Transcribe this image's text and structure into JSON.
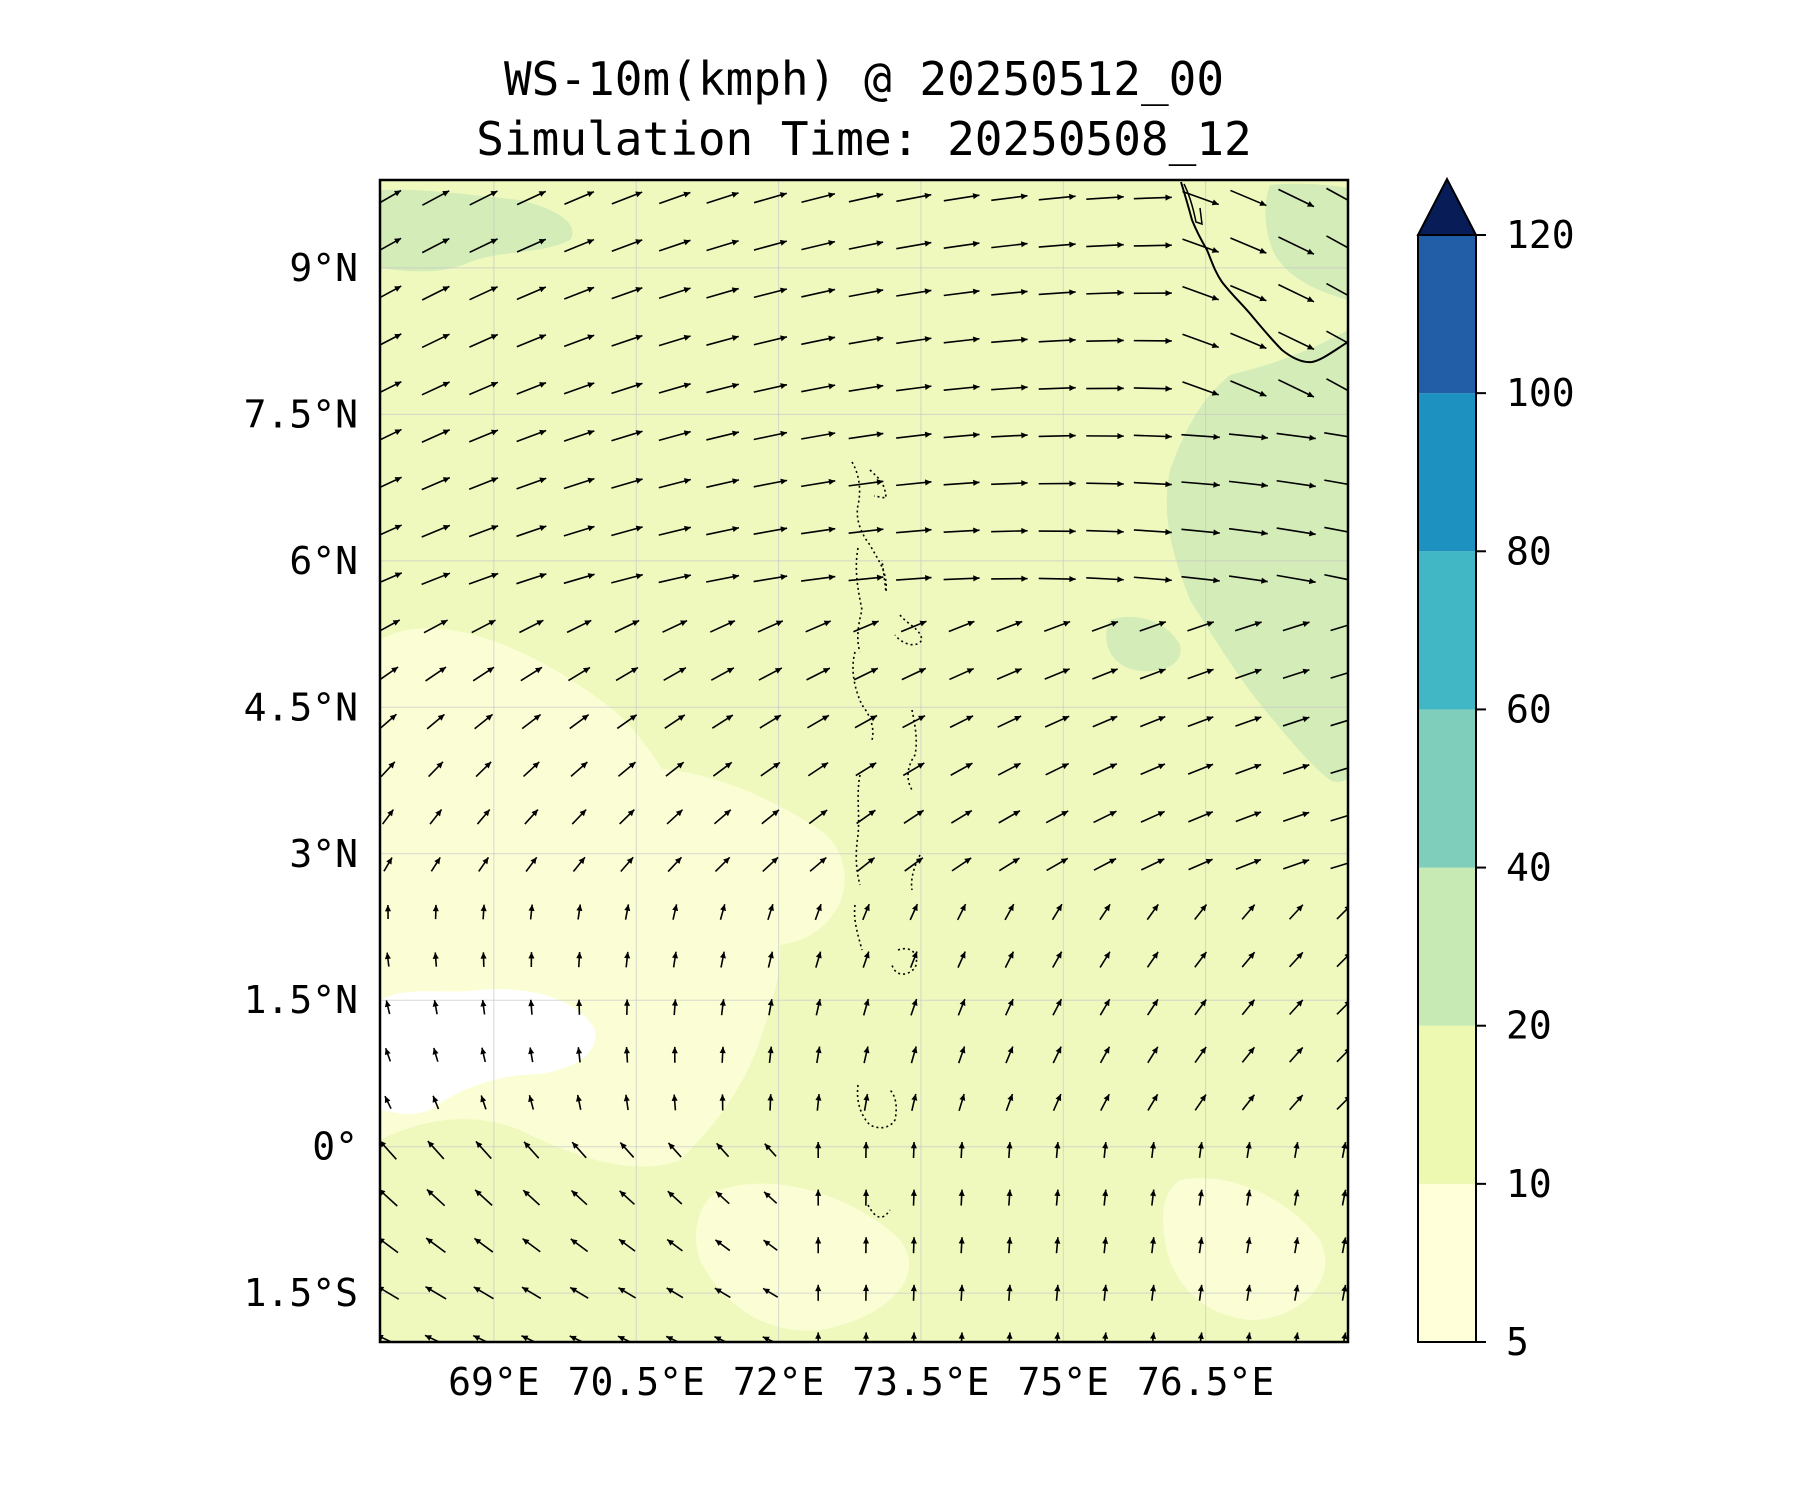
{
  "title": {
    "line1": "WS-10m(kmph) @ 20250512_00",
    "line2": "Simulation Time: 20250508_12"
  },
  "map": {
    "lon_range": [
      67.8,
      78.0
    ],
    "lat_range": [
      -2.0,
      9.9
    ],
    "lon_ticks": [
      {
        "value": 69.0,
        "label": "69°E"
      },
      {
        "value": 70.5,
        "label": "70.5°E"
      },
      {
        "value": 72.0,
        "label": "72°E"
      },
      {
        "value": 73.5,
        "label": "73.5°E"
      },
      {
        "value": 75.0,
        "label": "75°E"
      },
      {
        "value": 76.5,
        "label": "76.5°E"
      }
    ],
    "lat_ticks": [
      {
        "value": 9.0,
        "label": "9°N"
      },
      {
        "value": 7.5,
        "label": "7.5°N"
      },
      {
        "value": 6.0,
        "label": "6°N"
      },
      {
        "value": 4.5,
        "label": "4.5°N"
      },
      {
        "value": 3.0,
        "label": "3°N"
      },
      {
        "value": 1.5,
        "label": "1.5°N"
      },
      {
        "value": 0.0,
        "label": "0°"
      },
      {
        "value": -1.5,
        "label": "1.5°S"
      }
    ],
    "gridlines": true,
    "field_fill": "#eff9be"
  },
  "colorbar": {
    "levels": [
      5,
      10,
      20,
      40,
      60,
      80,
      100,
      120
    ],
    "labels": [
      "5",
      "10",
      "20",
      "40",
      "60",
      "80",
      "100",
      "120"
    ],
    "colors": [
      "#ffffd9",
      "#edf8b1",
      "#c7e9b4",
      "#7fcdbb",
      "#41b6c4",
      "#1d91c0",
      "#225ea8",
      "#0c2c84"
    ],
    "extend_color": "#081d58",
    "extend": "max"
  }
}
